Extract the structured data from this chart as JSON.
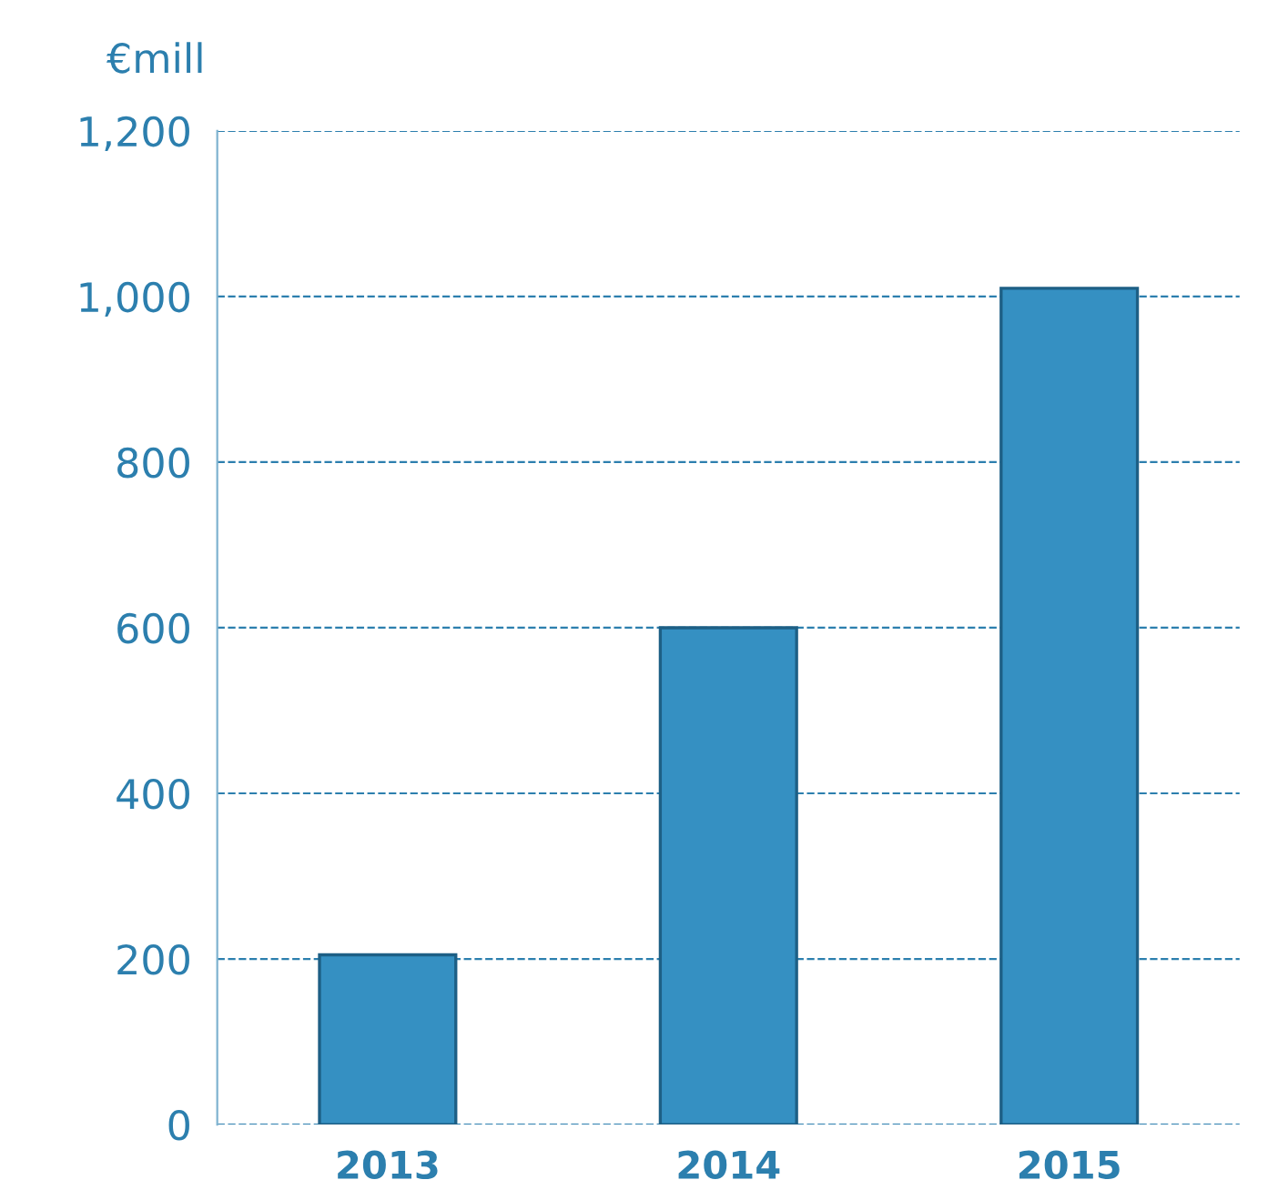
{
  "chart_data": {
    "type": "bar",
    "ylabel": "€mill",
    "categories": [
      "2013",
      "2014",
      "2015"
    ],
    "values": [
      205,
      600,
      1010
    ],
    "color": "#3590c2",
    "ylim": [
      0,
      1200
    ],
    "yticks": [
      0,
      {
        "value": 200,
        "label": "200"
      },
      {
        "value": 400,
        "label": "400"
      },
      {
        "value": 600,
        "label": "600"
      },
      {
        "value": 800,
        "label": "800"
      },
      {
        "value": 1000,
        "label": "1,000"
      },
      {
        "value": 1200,
        "label": "1,200"
      }
    ],
    "grid": "y",
    "line_style": "dashed"
  }
}
